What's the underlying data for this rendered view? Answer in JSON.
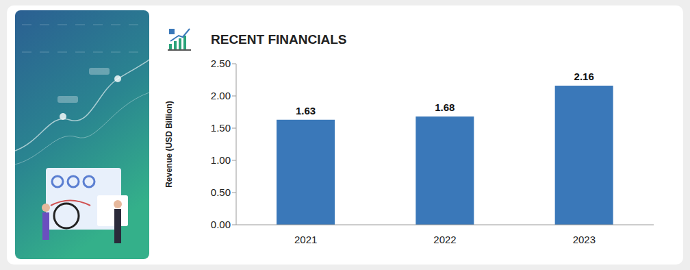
{
  "chart_data": {
    "type": "bar",
    "title": "RECENT FINANCIALS",
    "y_label": "Revenue (USD Billion)",
    "categories": [
      "2021",
      "2022",
      "2023"
    ],
    "values": [
      1.63,
      1.68,
      2.16
    ],
    "color": "#3a78b9",
    "ylim": [
      0,
      2.5
    ],
    "yticks": [
      {
        "value": 0,
        "label": "0.00"
      },
      {
        "value": 0.5,
        "label": "0.50"
      },
      {
        "value": 1,
        "label": "1.00"
      },
      {
        "value": 1.5,
        "label": "1.50"
      },
      {
        "value": 2,
        "label": "2.00"
      },
      {
        "value": 2.5,
        "label": "2.50"
      }
    ],
    "grid": false,
    "data_labels": true
  }
}
